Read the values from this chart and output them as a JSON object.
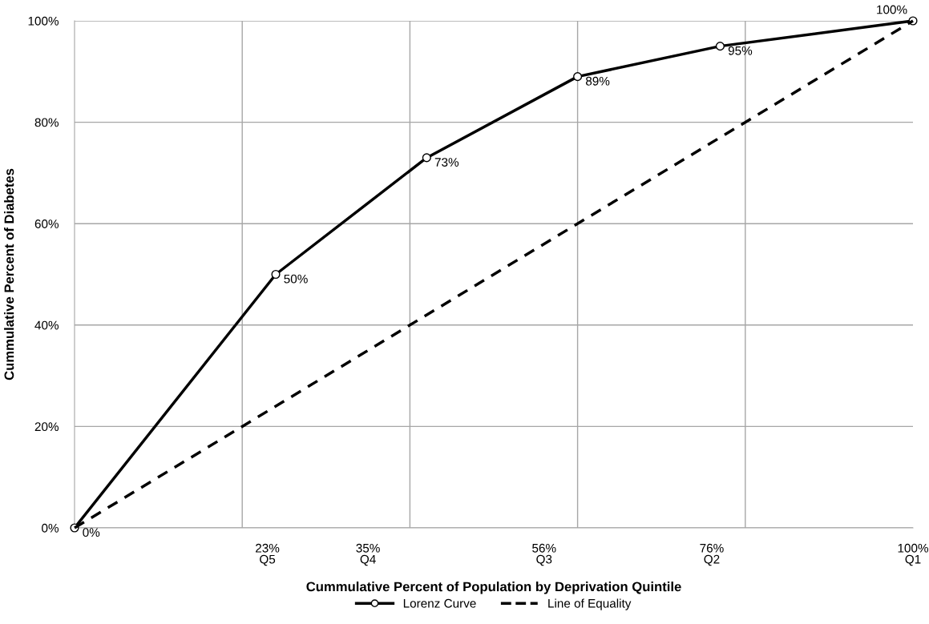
{
  "chart_data": {
    "type": "line",
    "xlabel": "Cummulative Percent of Population by Deprivation Quintile",
    "ylabel": "Cummulative Percent of Diabetes",
    "xlim": [
      0,
      100
    ],
    "ylim": [
      0,
      100
    ],
    "xticks": [
      {
        "value": 20,
        "label": null
      },
      {
        "value": 40,
        "label": null
      },
      {
        "value": 60,
        "label": null
      },
      {
        "value": 80,
        "label": null
      },
      {
        "value": 23,
        "label": "23%"
      },
      {
        "value": 35,
        "label": "35%"
      },
      {
        "value": 56,
        "label": "56%"
      },
      {
        "value": 76,
        "label": "76%"
      },
      {
        "value": 100,
        "label": "100%"
      }
    ],
    "annotations": [
      "Q5",
      "Q4",
      "Q3",
      "Q2",
      "Q1"
    ],
    "yticks": [
      {
        "value": 0,
        "label": "0%"
      },
      {
        "value": 20,
        "label": "20%"
      },
      {
        "value": 40,
        "label": "40%"
      },
      {
        "value": 60,
        "label": "60%"
      },
      {
        "value": 80,
        "label": "80%"
      },
      {
        "value": 100,
        "label": "100%"
      }
    ],
    "grid": true,
    "legend": "bottom",
    "series": [
      {
        "name": "Lorenz Curve",
        "color": "#000000",
        "marker": "circle",
        "line_style": "solid",
        "x": [
          0,
          24,
          42,
          60,
          77,
          100
        ],
        "values": [
          0,
          50,
          73,
          89,
          95,
          100
        ],
        "value_labels": [
          "0%",
          "50%",
          "73%",
          "89%",
          "95%",
          "100%"
        ]
      },
      {
        "name": "Line of Equality",
        "color": "#000000",
        "marker": "none",
        "line_style": "dashed",
        "x": [
          0,
          100
        ],
        "values": [
          0,
          100
        ]
      }
    ]
  }
}
